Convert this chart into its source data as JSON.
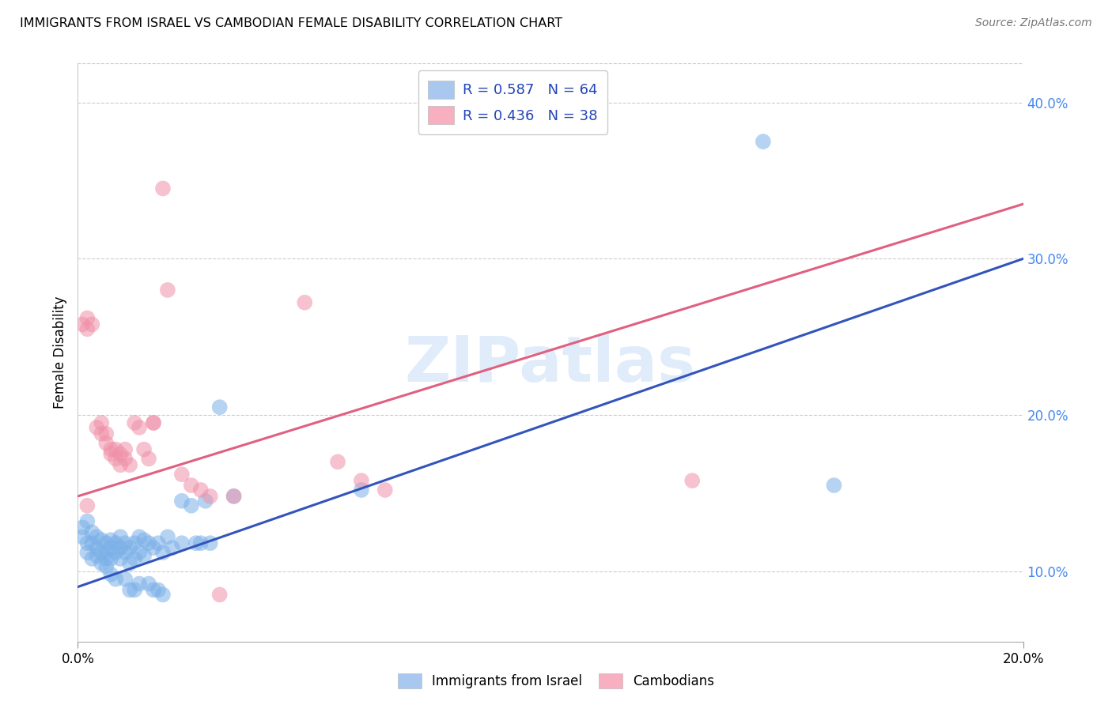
{
  "title": "IMMIGRANTS FROM ISRAEL VS CAMBODIAN FEMALE DISABILITY CORRELATION CHART",
  "source": "Source: ZipAtlas.com",
  "xlabel_min": "0.0%",
  "xlabel_max": "20.0%",
  "ylabel": "Female Disability",
  "y_ticks": [
    0.1,
    0.2,
    0.3,
    0.4
  ],
  "y_tick_labels": [
    "10.0%",
    "20.0%",
    "30.0%",
    "40.0%"
  ],
  "x_range": [
    0.0,
    0.2
  ],
  "y_range": [
    0.055,
    0.425
  ],
  "legend_entries": [
    {
      "label": "R = 0.587   N = 64",
      "color": "#a8c8f0"
    },
    {
      "label": "R = 0.436   N = 38",
      "color": "#f8b0c0"
    }
  ],
  "legend_bottom": [
    "Immigrants from Israel",
    "Cambodians"
  ],
  "israel_color": "#7ab0e8",
  "cambodian_color": "#f090a8",
  "israel_line_color": "#3355bb",
  "cambodian_line_color": "#e06080",
  "watermark": "ZIPatlas",
  "israel_scatter": [
    [
      0.001,
      0.128
    ],
    [
      0.001,
      0.122
    ],
    [
      0.002,
      0.132
    ],
    [
      0.002,
      0.118
    ],
    [
      0.002,
      0.112
    ],
    [
      0.003,
      0.125
    ],
    [
      0.003,
      0.118
    ],
    [
      0.003,
      0.108
    ],
    [
      0.004,
      0.122
    ],
    [
      0.004,
      0.115
    ],
    [
      0.004,
      0.11
    ],
    [
      0.005,
      0.12
    ],
    [
      0.005,
      0.112
    ],
    [
      0.005,
      0.105
    ],
    [
      0.006,
      0.118
    ],
    [
      0.006,
      0.112
    ],
    [
      0.006,
      0.108
    ],
    [
      0.006,
      0.103
    ],
    [
      0.007,
      0.12
    ],
    [
      0.007,
      0.115
    ],
    [
      0.007,
      0.108
    ],
    [
      0.007,
      0.098
    ],
    [
      0.008,
      0.118
    ],
    [
      0.008,
      0.112
    ],
    [
      0.008,
      0.095
    ],
    [
      0.009,
      0.122
    ],
    [
      0.009,
      0.115
    ],
    [
      0.009,
      0.108
    ],
    [
      0.01,
      0.118
    ],
    [
      0.01,
      0.112
    ],
    [
      0.01,
      0.095
    ],
    [
      0.011,
      0.115
    ],
    [
      0.011,
      0.105
    ],
    [
      0.011,
      0.088
    ],
    [
      0.012,
      0.118
    ],
    [
      0.012,
      0.108
    ],
    [
      0.012,
      0.088
    ],
    [
      0.013,
      0.122
    ],
    [
      0.013,
      0.112
    ],
    [
      0.013,
      0.092
    ],
    [
      0.014,
      0.12
    ],
    [
      0.014,
      0.11
    ],
    [
      0.015,
      0.118
    ],
    [
      0.015,
      0.092
    ],
    [
      0.016,
      0.115
    ],
    [
      0.016,
      0.088
    ],
    [
      0.017,
      0.118
    ],
    [
      0.017,
      0.088
    ],
    [
      0.018,
      0.112
    ],
    [
      0.018,
      0.085
    ],
    [
      0.019,
      0.122
    ],
    [
      0.02,
      0.115
    ],
    [
      0.022,
      0.145
    ],
    [
      0.022,
      0.118
    ],
    [
      0.024,
      0.142
    ],
    [
      0.025,
      0.118
    ],
    [
      0.026,
      0.118
    ],
    [
      0.027,
      0.145
    ],
    [
      0.028,
      0.118
    ],
    [
      0.03,
      0.205
    ],
    [
      0.033,
      0.148
    ],
    [
      0.06,
      0.152
    ],
    [
      0.145,
      0.375
    ],
    [
      0.16,
      0.155
    ]
  ],
  "cambodian_scatter": [
    [
      0.001,
      0.258
    ],
    [
      0.002,
      0.262
    ],
    [
      0.002,
      0.255
    ],
    [
      0.003,
      0.258
    ],
    [
      0.004,
      0.192
    ],
    [
      0.005,
      0.188
    ],
    [
      0.005,
      0.195
    ],
    [
      0.006,
      0.182
    ],
    [
      0.006,
      0.188
    ],
    [
      0.007,
      0.175
    ],
    [
      0.007,
      0.178
    ],
    [
      0.008,
      0.178
    ],
    [
      0.008,
      0.172
    ],
    [
      0.009,
      0.175
    ],
    [
      0.009,
      0.168
    ],
    [
      0.01,
      0.178
    ],
    [
      0.01,
      0.172
    ],
    [
      0.011,
      0.168
    ],
    [
      0.012,
      0.195
    ],
    [
      0.013,
      0.192
    ],
    [
      0.014,
      0.178
    ],
    [
      0.015,
      0.172
    ],
    [
      0.016,
      0.195
    ],
    [
      0.016,
      0.195
    ],
    [
      0.018,
      0.345
    ],
    [
      0.019,
      0.28
    ],
    [
      0.022,
      0.162
    ],
    [
      0.024,
      0.155
    ],
    [
      0.026,
      0.152
    ],
    [
      0.028,
      0.148
    ],
    [
      0.03,
      0.085
    ],
    [
      0.033,
      0.148
    ],
    [
      0.048,
      0.272
    ],
    [
      0.055,
      0.17
    ],
    [
      0.06,
      0.158
    ],
    [
      0.065,
      0.152
    ],
    [
      0.13,
      0.158
    ],
    [
      0.002,
      0.142
    ]
  ],
  "israel_line": {
    "x0": 0.0,
    "y0": 0.09,
    "x1": 0.2,
    "y1": 0.3
  },
  "cambodian_line": {
    "x0": 0.0,
    "y0": 0.148,
    "x1": 0.2,
    "y1": 0.335
  }
}
